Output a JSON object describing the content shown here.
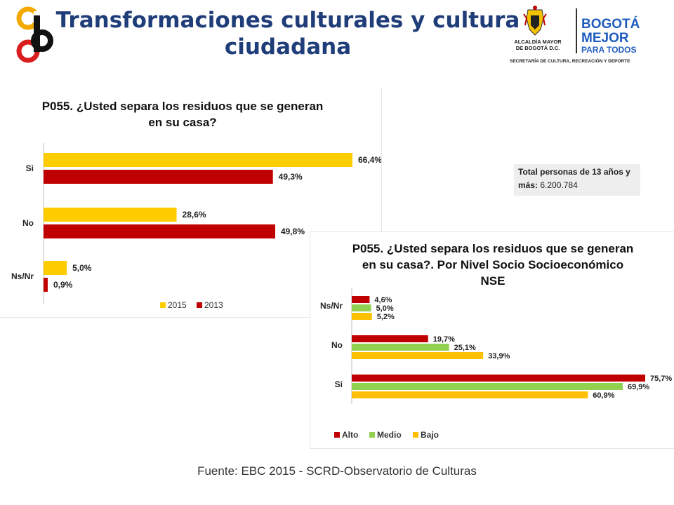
{
  "header": {
    "title": "Transformaciones culturales y cultura ciudadana",
    "title_line1": "Transformaciones culturales y cultura",
    "title_line2": "ciudadana",
    "gov_logo": {
      "line1": "ALCALDÍA MAYOR",
      "line2": "DE BOGOTÁ D.C.",
      "slogan1": "BOGOTÁ",
      "slogan2": "MEJOR",
      "slogan3": "PARA TODOS",
      "secretaria": "SECRETARÍA DE CULTURA, RECREACIÓN Y DEPORTE"
    }
  },
  "note": {
    "label": "Total personas de 13 años y más:",
    "value": "6.200.784"
  },
  "source": "Fuente: EBC 2015 - SCRD-Observatorio de Culturas",
  "colors": {
    "series_2015": "#ffcc00",
    "series_2013": "#c00000",
    "alto": "#c00000",
    "medio": "#92d050",
    "bajo": "#ffc000",
    "title_blue": "#1f3d78"
  },
  "chart_data": [
    {
      "type": "bar",
      "orientation": "horizontal",
      "title": "P055. ¿Usted separa los residuos que se generan en su casa?",
      "title_line1": "P055. ¿Usted separa los residuos que se generan",
      "title_line2": "en su casa?",
      "categories": [
        "Si",
        "No",
        "Ns/Nr"
      ],
      "series": [
        {
          "name": "2015",
          "values": [
            66.4,
            28.6,
            5.0
          ],
          "labels": [
            "66,4%",
            "28,6%",
            "5,0%"
          ]
        },
        {
          "name": "2013",
          "values": [
            49.3,
            49.8,
            0.9
          ],
          "labels": [
            "49,3%",
            "49,8%",
            "0,9%"
          ]
        }
      ],
      "legend": "bottom"
    },
    {
      "type": "bar",
      "orientation": "horizontal",
      "title": "P055. ¿Usted separa los residuos que se generan en su casa?. Por Nivel Socio Socioeconómico NSE",
      "title_line1": "P055. ¿Usted separa los residuos que se generan",
      "title_line2": "en su casa?. Por Nivel Socio Socioeconómico",
      "title_line3": "NSE",
      "categories": [
        "Ns/Nr",
        "No",
        "Si"
      ],
      "series": [
        {
          "name": "Alto",
          "values": [
            4.6,
            19.7,
            75.7
          ],
          "labels": [
            "4,6%",
            "19,7%",
            "75,7%"
          ]
        },
        {
          "name": "Medio",
          "values": [
            5.0,
            25.1,
            69.9
          ],
          "labels": [
            "5,0%",
            "25,1%",
            "69,9%"
          ]
        },
        {
          "name": "Bajo",
          "values": [
            5.2,
            33.9,
            60.9
          ],
          "labels": [
            "5,2%",
            "33,9%",
            "60,9%"
          ]
        }
      ],
      "legend": "bottom-left"
    }
  ]
}
